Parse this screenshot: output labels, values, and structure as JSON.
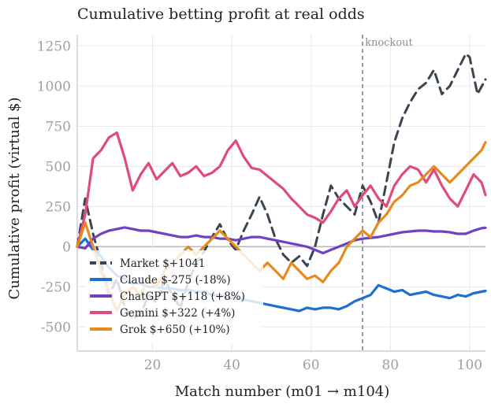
{
  "chart_data": {
    "type": "line",
    "title": "Cumulative betting profit at real odds",
    "xlabel": "Match number (m01 → m104)",
    "ylabel": "Cumulative profit (virtual $)",
    "xlim": [
      1,
      104
    ],
    "ylim": [
      -650,
      1320
    ],
    "xticks": [
      20,
      40,
      60,
      80,
      100
    ],
    "yticks": [
      -500,
      -250,
      0,
      250,
      500,
      750,
      1000,
      1250
    ],
    "grid": true,
    "legend_position": "lower-left",
    "vline": {
      "x": 73,
      "label": "knockout"
    },
    "series": [
      {
        "name": "Market",
        "legend_label": "Market  $+1041",
        "color": "#3a4452",
        "dash": true,
        "x": [
          1,
          3,
          5,
          7,
          9,
          11,
          13,
          15,
          17,
          19,
          21,
          23,
          25,
          27,
          29,
          31,
          33,
          35,
          37,
          39,
          41,
          43,
          45,
          47,
          49,
          51,
          53,
          55,
          57,
          59,
          61,
          63,
          65,
          67,
          69,
          71,
          73,
          75,
          77,
          79,
          81,
          83,
          85,
          87,
          89,
          91,
          93,
          95,
          97,
          99,
          100,
          102,
          104
        ],
        "y": [
          0,
          300,
          80,
          -100,
          -300,
          -200,
          -380,
          -450,
          -420,
          -300,
          -350,
          -200,
          -300,
          -380,
          -220,
          -100,
          -30,
          60,
          140,
          40,
          -20,
          100,
          200,
          310,
          200,
          50,
          -50,
          -100,
          -60,
          -120,
          0,
          200,
          380,
          300,
          250,
          200,
          380,
          280,
          150,
          400,
          650,
          800,
          900,
          980,
          1020,
          1100,
          950,
          1000,
          1100,
          1200,
          1180,
          950,
          1041
        ]
      },
      {
        "name": "Claude",
        "legend_label": "Claude  $-275 (-18%)",
        "color": "#1f6fd1",
        "dash": false,
        "x": [
          1,
          3,
          5,
          7,
          9,
          11,
          13,
          15,
          17,
          19,
          21,
          23,
          25,
          27,
          29,
          31,
          33,
          35,
          37,
          39,
          41,
          43,
          45,
          47,
          49,
          51,
          53,
          55,
          57,
          59,
          61,
          63,
          65,
          67,
          69,
          71,
          73,
          75,
          77,
          79,
          81,
          83,
          85,
          87,
          89,
          91,
          93,
          95,
          97,
          99,
          101,
          103,
          104
        ],
        "y": [
          0,
          50,
          -20,
          -60,
          -130,
          -180,
          -200,
          -230,
          -230,
          -250,
          -250,
          -260,
          -260,
          -270,
          -270,
          -280,
          -280,
          -300,
          -300,
          -320,
          -320,
          -330,
          -340,
          -350,
          -360,
          -370,
          -380,
          -390,
          -400,
          -380,
          -390,
          -380,
          -380,
          -390,
          -370,
          -340,
          -320,
          -300,
          -240,
          -260,
          -280,
          -270,
          -300,
          -290,
          -280,
          -300,
          -310,
          -320,
          -300,
          -310,
          -290,
          -280,
          -275
        ]
      },
      {
        "name": "ChatGPT",
        "legend_label": "ChatGPT  $+118 (+8%)",
        "color": "#6f42c1",
        "dash": false,
        "x": [
          1,
          3,
          5,
          7,
          9,
          11,
          13,
          15,
          17,
          19,
          21,
          23,
          25,
          27,
          29,
          31,
          33,
          35,
          37,
          39,
          41,
          43,
          45,
          47,
          49,
          51,
          53,
          55,
          57,
          59,
          61,
          63,
          65,
          67,
          69,
          71,
          73,
          75,
          77,
          79,
          81,
          83,
          85,
          87,
          89,
          91,
          93,
          95,
          97,
          99,
          101,
          103,
          104
        ],
        "y": [
          0,
          -10,
          50,
          80,
          100,
          110,
          120,
          110,
          100,
          100,
          90,
          80,
          70,
          60,
          60,
          70,
          60,
          60,
          50,
          50,
          40,
          50,
          60,
          60,
          50,
          40,
          30,
          20,
          10,
          0,
          -20,
          -40,
          -20,
          0,
          20,
          40,
          50,
          55,
          60,
          70,
          80,
          90,
          95,
          100,
          100,
          95,
          95,
          90,
          80,
          80,
          100,
          115,
          118
        ]
      },
      {
        "name": "Gemini",
        "legend_label": "Gemini  $+322 (+4%)",
        "color": "#e04a7c",
        "dash": false,
        "x": [
          1,
          3,
          5,
          7,
          9,
          11,
          13,
          15,
          17,
          19,
          21,
          23,
          25,
          27,
          29,
          31,
          33,
          35,
          37,
          39,
          41,
          43,
          45,
          47,
          49,
          51,
          53,
          55,
          57,
          59,
          61,
          63,
          65,
          67,
          69,
          71,
          73,
          75,
          77,
          79,
          81,
          83,
          85,
          87,
          89,
          91,
          93,
          95,
          97,
          99,
          101,
          103,
          104
        ],
        "y": [
          0,
          200,
          550,
          600,
          680,
          710,
          550,
          350,
          450,
          520,
          420,
          470,
          520,
          440,
          460,
          500,
          440,
          460,
          500,
          600,
          660,
          560,
          490,
          480,
          440,
          400,
          360,
          300,
          250,
          200,
          180,
          150,
          220,
          300,
          350,
          250,
          320,
          380,
          300,
          250,
          380,
          450,
          500,
          480,
          400,
          480,
          380,
          300,
          250,
          350,
          450,
          400,
          322
        ]
      },
      {
        "name": "Grok",
        "legend_label": "Grok  $+650 (+10%)",
        "color": "#e8891e",
        "dash": false,
        "x": [
          1,
          3,
          5,
          7,
          9,
          11,
          13,
          15,
          17,
          19,
          21,
          23,
          25,
          27,
          29,
          31,
          33,
          35,
          37,
          39,
          41,
          43,
          45,
          47,
          49,
          51,
          53,
          55,
          57,
          59,
          61,
          63,
          65,
          67,
          69,
          71,
          73,
          75,
          77,
          79,
          81,
          83,
          85,
          87,
          89,
          91,
          93,
          95,
          97,
          99,
          101,
          103,
          104
        ],
        "y": [
          0,
          150,
          0,
          -150,
          -280,
          -400,
          -300,
          -250,
          -300,
          -200,
          -250,
          -150,
          -100,
          -50,
          0,
          -50,
          0,
          50,
          100,
          50,
          0,
          -50,
          -100,
          -150,
          -100,
          -150,
          -200,
          -100,
          -150,
          -200,
          -180,
          -220,
          -150,
          -100,
          0,
          50,
          100,
          60,
          150,
          200,
          280,
          320,
          380,
          400,
          450,
          500,
          450,
          400,
          450,
          500,
          550,
          600,
          650
        ]
      }
    ]
  }
}
